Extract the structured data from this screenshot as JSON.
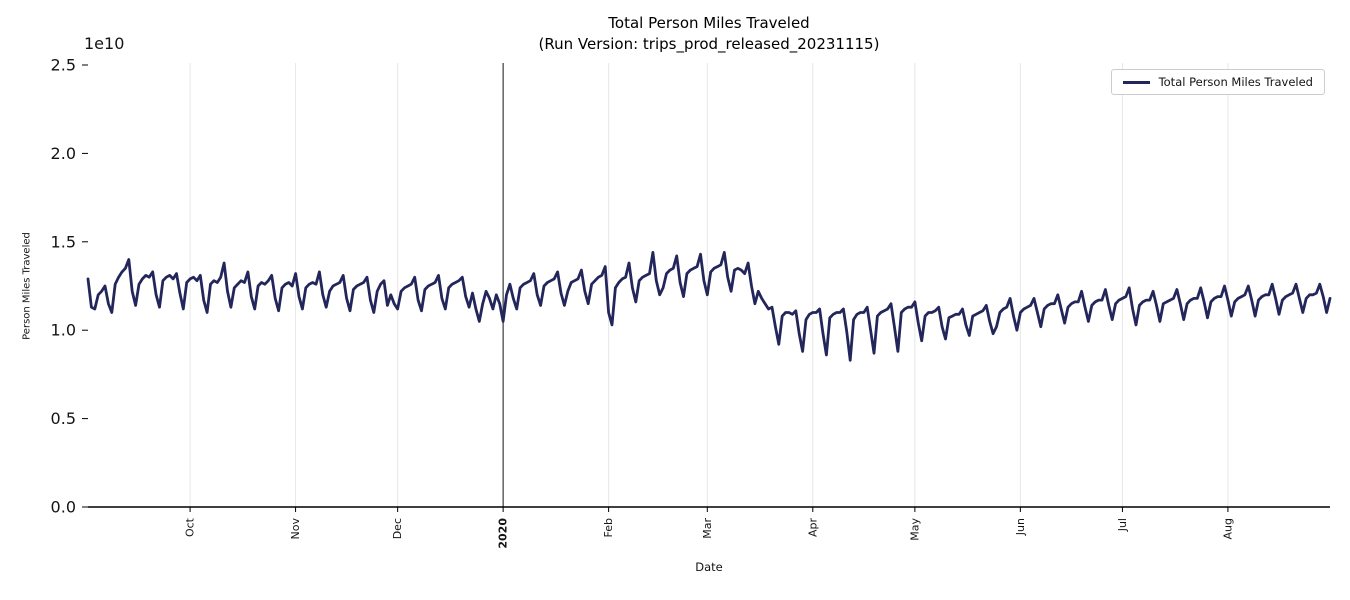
{
  "chart_data": {
    "type": "line",
    "title": "Total Person Miles Traveled",
    "subtitle": "(Run Version: trips_prod_released_20231115)",
    "xlabel": "Date",
    "ylabel": "Person Miles Traveled",
    "y_offset_text": "1e10",
    "y_unit": 10000000000,
    "ylim": [
      0,
      2.5
    ],
    "grid": {
      "vertical_month_gridlines": true,
      "horizontal": false,
      "year_boundary_dark_line": true
    },
    "y_ticks": {
      "values": [
        0,
        0.5,
        1.0,
        1.5,
        2.0,
        2.5
      ],
      "labels": [
        "0.0",
        "0.5",
        "1.0",
        "1.5",
        "2.0",
        "2.5"
      ]
    },
    "x_start": "2019-09-01",
    "x_freq": "daily",
    "x_span_days": 365,
    "x_ticks": {
      "days": [
        30,
        61,
        91,
        122,
        153,
        182,
        213,
        243,
        274,
        304,
        335
      ],
      "labels": [
        "Oct",
        "Nov",
        "Dec",
        "2020",
        "Feb",
        "Mar",
        "Apr",
        "May",
        "Jun",
        "Jul",
        "Aug"
      ],
      "bold_label": "2020"
    },
    "colors": {
      "line": "#23265a",
      "month_gridline": "#e7e7e7",
      "year_line": "#3a3a3a",
      "axis": "#000000",
      "legend_border": "#cccccc"
    },
    "legend": {
      "position": "upper right",
      "entries": [
        {
          "label": "Total Person Miles Traveled",
          "color": "#23265a"
        }
      ]
    },
    "series": [
      {
        "name": "Total Person Miles Traveled",
        "color": "#23265a",
        "values_1e10": [
          1.29,
          1.13,
          1.12,
          1.2,
          1.22,
          1.25,
          1.15,
          1.1,
          1.26,
          1.3,
          1.33,
          1.35,
          1.4,
          1.22,
          1.14,
          1.26,
          1.29,
          1.31,
          1.3,
          1.33,
          1.2,
          1.13,
          1.28,
          1.3,
          1.31,
          1.29,
          1.32,
          1.21,
          1.12,
          1.27,
          1.29,
          1.3,
          1.28,
          1.31,
          1.17,
          1.1,
          1.26,
          1.28,
          1.27,
          1.3,
          1.38,
          1.22,
          1.13,
          1.24,
          1.26,
          1.28,
          1.27,
          1.33,
          1.19,
          1.12,
          1.25,
          1.27,
          1.26,
          1.28,
          1.31,
          1.18,
          1.11,
          1.24,
          1.26,
          1.27,
          1.25,
          1.32,
          1.19,
          1.12,
          1.24,
          1.26,
          1.27,
          1.26,
          1.33,
          1.2,
          1.13,
          1.22,
          1.25,
          1.26,
          1.27,
          1.31,
          1.18,
          1.11,
          1.23,
          1.25,
          1.26,
          1.27,
          1.3,
          1.17,
          1.1,
          1.22,
          1.26,
          1.28,
          1.14,
          1.2,
          1.15,
          1.12,
          1.22,
          1.24,
          1.25,
          1.26,
          1.3,
          1.17,
          1.11,
          1.23,
          1.25,
          1.26,
          1.27,
          1.31,
          1.18,
          1.12,
          1.24,
          1.26,
          1.27,
          1.28,
          1.3,
          1.19,
          1.13,
          1.21,
          1.12,
          1.05,
          1.15,
          1.22,
          1.18,
          1.12,
          1.2,
          1.15,
          1.05,
          1.2,
          1.26,
          1.18,
          1.12,
          1.24,
          1.26,
          1.27,
          1.28,
          1.32,
          1.2,
          1.14,
          1.25,
          1.27,
          1.28,
          1.29,
          1.33,
          1.21,
          1.14,
          1.22,
          1.27,
          1.28,
          1.29,
          1.34,
          1.22,
          1.15,
          1.26,
          1.28,
          1.3,
          1.31,
          1.36,
          1.1,
          1.03,
          1.24,
          1.27,
          1.29,
          1.3,
          1.38,
          1.24,
          1.16,
          1.28,
          1.3,
          1.31,
          1.32,
          1.44,
          1.28,
          1.2,
          1.24,
          1.32,
          1.34,
          1.35,
          1.42,
          1.27,
          1.19,
          1.32,
          1.34,
          1.35,
          1.36,
          1.43,
          1.28,
          1.2,
          1.33,
          1.35,
          1.36,
          1.37,
          1.44,
          1.3,
          1.22,
          1.34,
          1.35,
          1.34,
          1.32,
          1.38,
          1.25,
          1.15,
          1.22,
          1.18,
          1.15,
          1.12,
          1.13,
          1.02,
          0.92,
          1.08,
          1.1,
          1.1,
          1.09,
          1.11,
          0.98,
          0.88,
          1.06,
          1.09,
          1.1,
          1.1,
          1.12,
          0.98,
          0.86,
          1.07,
          1.09,
          1.1,
          1.1,
          1.12,
          0.99,
          0.83,
          1.06,
          1.09,
          1.1,
          1.1,
          1.13,
          1.0,
          0.87,
          1.08,
          1.1,
          1.11,
          1.12,
          1.15,
          1.02,
          0.88,
          1.1,
          1.12,
          1.13,
          1.13,
          1.16,
          1.04,
          0.94,
          1.08,
          1.1,
          1.1,
          1.11,
          1.13,
          1.02,
          0.95,
          1.07,
          1.08,
          1.09,
          1.09,
          1.12,
          1.03,
          0.97,
          1.08,
          1.09,
          1.1,
          1.11,
          1.14,
          1.05,
          0.98,
          1.02,
          1.1,
          1.12,
          1.13,
          1.18,
          1.08,
          1.0,
          1.1,
          1.12,
          1.13,
          1.14,
          1.18,
          1.1,
          1.02,
          1.12,
          1.14,
          1.15,
          1.15,
          1.2,
          1.12,
          1.04,
          1.13,
          1.15,
          1.16,
          1.16,
          1.22,
          1.13,
          1.05,
          1.14,
          1.16,
          1.17,
          1.17,
          1.23,
          1.14,
          1.06,
          1.15,
          1.17,
          1.18,
          1.19,
          1.24,
          1.12,
          1.03,
          1.14,
          1.16,
          1.17,
          1.17,
          1.22,
          1.14,
          1.05,
          1.15,
          1.16,
          1.17,
          1.18,
          1.23,
          1.15,
          1.06,
          1.15,
          1.17,
          1.18,
          1.18,
          1.24,
          1.16,
          1.07,
          1.16,
          1.18,
          1.19,
          1.19,
          1.25,
          1.17,
          1.08,
          1.16,
          1.18,
          1.19,
          1.2,
          1.25,
          1.17,
          1.08,
          1.17,
          1.19,
          1.2,
          1.2,
          1.26,
          1.18,
          1.09,
          1.17,
          1.19,
          1.2,
          1.21,
          1.26,
          1.18,
          1.1,
          1.18,
          1.2,
          1.2,
          1.21,
          1.26,
          1.19,
          1.1,
          1.18
        ]
      }
    ]
  }
}
